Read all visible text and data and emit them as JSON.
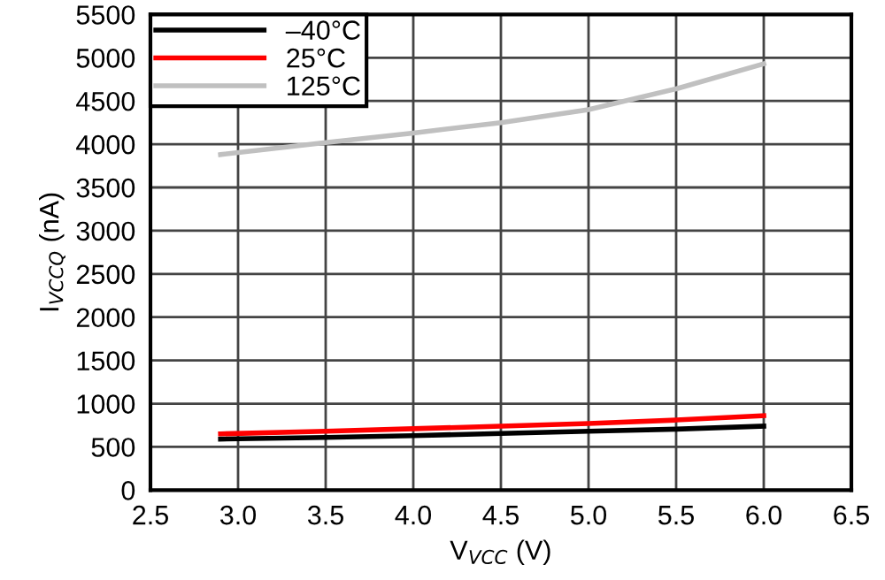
{
  "chart_data": {
    "type": "line",
    "xlabel": "V$_{VCC}$ (V)",
    "ylabel": "I$_{VCCQ}$ (nA)",
    "x": [
      2.9,
      3.5,
      4.0,
      4.5,
      5.0,
      5.5,
      6.0
    ],
    "series": [
      {
        "name": "–40°C",
        "color": "#000000",
        "values": [
          590,
          610,
          630,
          655,
          680,
          705,
          740
        ]
      },
      {
        "name": "25°C",
        "color": "#ff0000",
        "values": [
          650,
          680,
          710,
          740,
          770,
          810,
          860
        ]
      },
      {
        "name": "125°C",
        "color": "#c0c0c0",
        "values": [
          3880,
          4020,
          4130,
          4250,
          4400,
          4640,
          4930
        ]
      }
    ],
    "xlim": [
      2.5,
      6.5
    ],
    "xticks": [
      {
        "value": 2.5,
        "label": "2.5"
      },
      {
        "value": 3,
        "label": "3.0"
      },
      {
        "value": 3.5,
        "label": "3.5"
      },
      {
        "value": 4,
        "label": "4.0"
      },
      {
        "value": 4.5,
        "label": "4.5"
      },
      {
        "value": 5,
        "label": "5.0"
      },
      {
        "value": 5.5,
        "label": "5.5"
      },
      {
        "value": 6,
        "label": "6.0"
      },
      {
        "value": 6.5,
        "label": "6.5"
      }
    ],
    "ylim": [
      0,
      5500
    ],
    "yticks": [
      0,
      500,
      1000,
      1500,
      2000,
      2500,
      3000,
      3500,
      4000,
      4500,
      5000,
      5500
    ],
    "grid": true,
    "legend": "top left",
    "line_style": "solid",
    "marker": "none"
  }
}
